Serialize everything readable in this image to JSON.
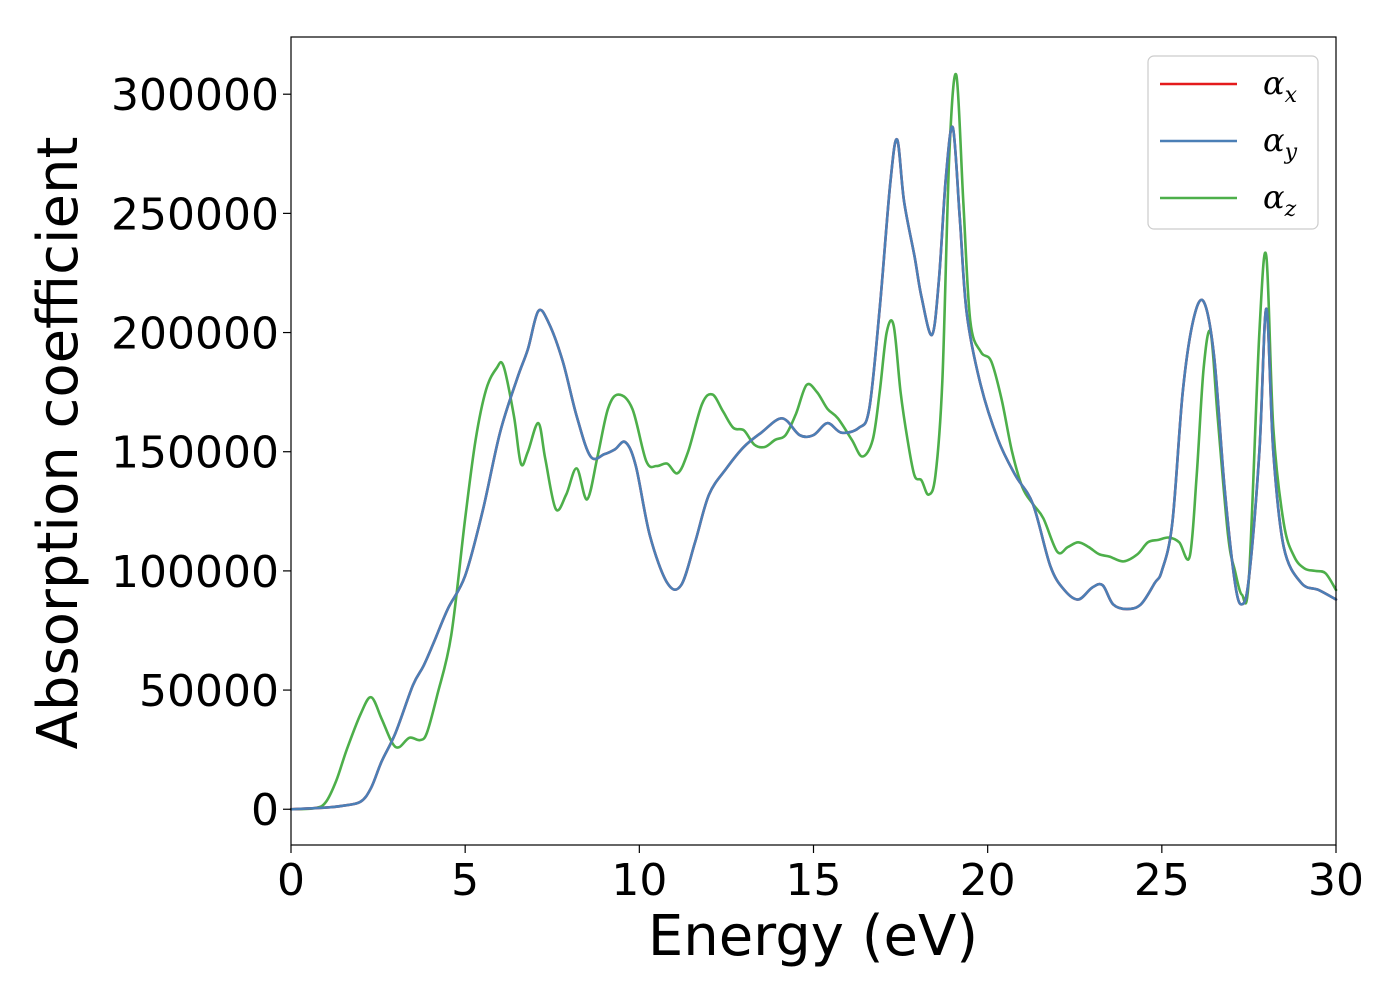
{
  "chart_data": {
    "type": "line",
    "title": "",
    "xlabel": "Energy (eV)",
    "ylabel": "Absorption coefficient",
    "xlim": [
      0,
      30
    ],
    "ylim": [
      -15000,
      324000
    ],
    "xticks": [
      0,
      5,
      10,
      15,
      20,
      25,
      30
    ],
    "yticks": [
      0,
      50000,
      100000,
      150000,
      200000,
      250000,
      300000
    ],
    "xtick_labels": [
      "0",
      "5",
      "10",
      "15",
      "20",
      "25",
      "30"
    ],
    "ytick_labels": [
      "0",
      "50000",
      "100000",
      "150000",
      "200000",
      "250000",
      "300000"
    ],
    "grid": false,
    "legend_position": "top-right",
    "series": [
      {
        "name": "αx",
        "base": "α",
        "sub": "x",
        "color": "#e41a1c",
        "x": [
          0,
          1,
          1.5,
          2,
          2.3,
          2.6,
          3,
          3.5,
          3.8,
          4.1,
          4.5,
          5,
          5.5,
          6,
          6.5,
          6.8,
          7.1,
          7.4,
          7.8,
          8.2,
          8.6,
          9,
          9.3,
          9.6,
          9.9,
          10.3,
          10.8,
          11.2,
          11.6,
          12,
          12.5,
          13,
          13.5,
          14.1,
          14.6,
          15,
          15.4,
          15.8,
          16.3,
          16.6,
          16.9,
          17.2,
          17.4,
          17.6,
          17.9,
          18.1,
          18.4,
          18.6,
          18.8,
          19,
          19.2,
          19.4,
          19.8,
          20.3,
          20.8,
          21.3,
          21.8,
          22.2,
          22.6,
          23,
          23.3,
          23.6,
          24,
          24.4,
          24.8,
          25,
          25.3,
          25.6,
          25.9,
          26.2,
          26.5,
          26.8,
          27.1,
          27.3,
          27.5,
          27.8,
          28,
          28.2,
          28.5,
          29,
          29.5,
          30
        ],
        "y": [
          0,
          700,
          1500,
          3200,
          9000,
          20000,
          32000,
          52000,
          60000,
          70000,
          84000,
          98000,
          125000,
          158000,
          181000,
          193000,
          209000,
          204000,
          188000,
          165000,
          148000,
          149000,
          151000,
          154000,
          144000,
          115000,
          95000,
          94000,
          112000,
          132000,
          143000,
          152000,
          158000,
          164000,
          157000,
          157000,
          162000,
          158000,
          160000,
          168000,
          210000,
          262000,
          281000,
          255000,
          232000,
          215000,
          199000,
          222000,
          265000,
          286000,
          248000,
          208000,
          178000,
          155000,
          140000,
          128000,
          102000,
          92000,
          88000,
          93000,
          94000,
          86000,
          84000,
          86000,
          95000,
          100000,
          120000,
          175000,
          205000,
          213000,
          190000,
          135000,
          95000,
          86000,
          97000,
          150000,
          210000,
          150000,
          110000,
          95000,
          92000,
          88000
        ]
      },
      {
        "name": "αy",
        "base": "α",
        "sub": "y",
        "color": "#4b7fb6",
        "x": [
          0,
          1,
          1.5,
          2,
          2.3,
          2.6,
          3,
          3.5,
          3.8,
          4.1,
          4.5,
          5,
          5.5,
          6,
          6.5,
          6.8,
          7.1,
          7.4,
          7.8,
          8.2,
          8.6,
          9,
          9.3,
          9.6,
          9.9,
          10.3,
          10.8,
          11.2,
          11.6,
          12,
          12.5,
          13,
          13.5,
          14.1,
          14.6,
          15,
          15.4,
          15.8,
          16.3,
          16.6,
          16.9,
          17.2,
          17.4,
          17.6,
          17.9,
          18.1,
          18.4,
          18.6,
          18.8,
          19,
          19.2,
          19.4,
          19.8,
          20.3,
          20.8,
          21.3,
          21.8,
          22.2,
          22.6,
          23,
          23.3,
          23.6,
          24,
          24.4,
          24.8,
          25,
          25.3,
          25.6,
          25.9,
          26.2,
          26.5,
          26.8,
          27.1,
          27.3,
          27.5,
          27.8,
          28,
          28.2,
          28.5,
          29,
          29.5,
          30
        ],
        "y": [
          0,
          700,
          1500,
          3200,
          9000,
          20000,
          32000,
          52000,
          60000,
          70000,
          84000,
          98000,
          125000,
          158000,
          181000,
          193000,
          209000,
          204000,
          188000,
          165000,
          148000,
          149000,
          151000,
          154000,
          144000,
          115000,
          95000,
          94000,
          112000,
          132000,
          143000,
          152000,
          158000,
          164000,
          157000,
          157000,
          162000,
          158000,
          160000,
          168000,
          210000,
          262000,
          281000,
          255000,
          232000,
          215000,
          199000,
          222000,
          265000,
          286000,
          248000,
          208000,
          178000,
          155000,
          140000,
          128000,
          102000,
          92000,
          88000,
          93000,
          94000,
          86000,
          84000,
          86000,
          95000,
          100000,
          120000,
          175000,
          205000,
          213000,
          190000,
          135000,
          95000,
          86000,
          97000,
          150000,
          210000,
          150000,
          110000,
          95000,
          92000,
          88000
        ]
      },
      {
        "name": "αz",
        "base": "α",
        "sub": "z",
        "color": "#4daf4a",
        "x": [
          0,
          0.7,
          1,
          1.3,
          1.6,
          2,
          2.3,
          2.6,
          2.9,
          3.1,
          3.4,
          3.7,
          3.9,
          4.2,
          4.6,
          5,
          5.3,
          5.6,
          5.9,
          6.1,
          6.4,
          6.6,
          6.8,
          7.1,
          7.3,
          7.6,
          7.9,
          8.2,
          8.5,
          8.8,
          9.1,
          9.4,
          9.8,
          10.2,
          10.5,
          10.8,
          11.1,
          11.4,
          11.8,
          12.1,
          12.4,
          12.7,
          13,
          13.3,
          13.6,
          13.9,
          14.2,
          14.5,
          14.8,
          15.1,
          15.4,
          15.7,
          16.1,
          16.4,
          16.7,
          16.9,
          17.1,
          17.3,
          17.5,
          17.7,
          17.9,
          18.1,
          18.3,
          18.5,
          18.7,
          18.9,
          19.1,
          19.3,
          19.5,
          19.8,
          20.1,
          20.4,
          20.7,
          21,
          21.3,
          21.6,
          22,
          22.3,
          22.6,
          22.9,
          23.2,
          23.5,
          23.9,
          24.3,
          24.6,
          24.9,
          25.2,
          25.5,
          25.8,
          26,
          26.2,
          26.4,
          26.6,
          26.9,
          27.1,
          27.3,
          27.5,
          27.8,
          28,
          28.2,
          28.5,
          28.8,
          29.1,
          29.4,
          29.7,
          30
        ],
        "y": [
          0,
          500,
          3000,
          12000,
          25000,
          40000,
          47000,
          38000,
          28000,
          26000,
          30000,
          29000,
          32000,
          48000,
          73000,
          122000,
          155000,
          176000,
          185000,
          186000,
          165000,
          145000,
          150000,
          162000,
          147000,
          126000,
          132000,
          143000,
          130000,
          148000,
          168000,
          174000,
          168000,
          146000,
          144000,
          145000,
          141000,
          150000,
          170000,
          174000,
          167000,
          160000,
          159000,
          153000,
          152000,
          155000,
          157000,
          166000,
          178000,
          175000,
          168000,
          164000,
          155000,
          148000,
          155000,
          175000,
          200000,
          203000,
          175000,
          155000,
          140000,
          138000,
          132000,
          140000,
          180000,
          275000,
          308000,
          255000,
          205000,
          192000,
          188000,
          172000,
          150000,
          135000,
          128000,
          122000,
          108000,
          110000,
          112000,
          110000,
          107000,
          106000,
          104000,
          107000,
          112000,
          113000,
          114000,
          112000,
          106000,
          140000,
          185000,
          200000,
          165000,
          115000,
          100000,
          90000,
          97000,
          200000,
          232000,
          160000,
          120000,
          106000,
          101000,
          100000,
          99000,
          92000
        ]
      }
    ]
  }
}
